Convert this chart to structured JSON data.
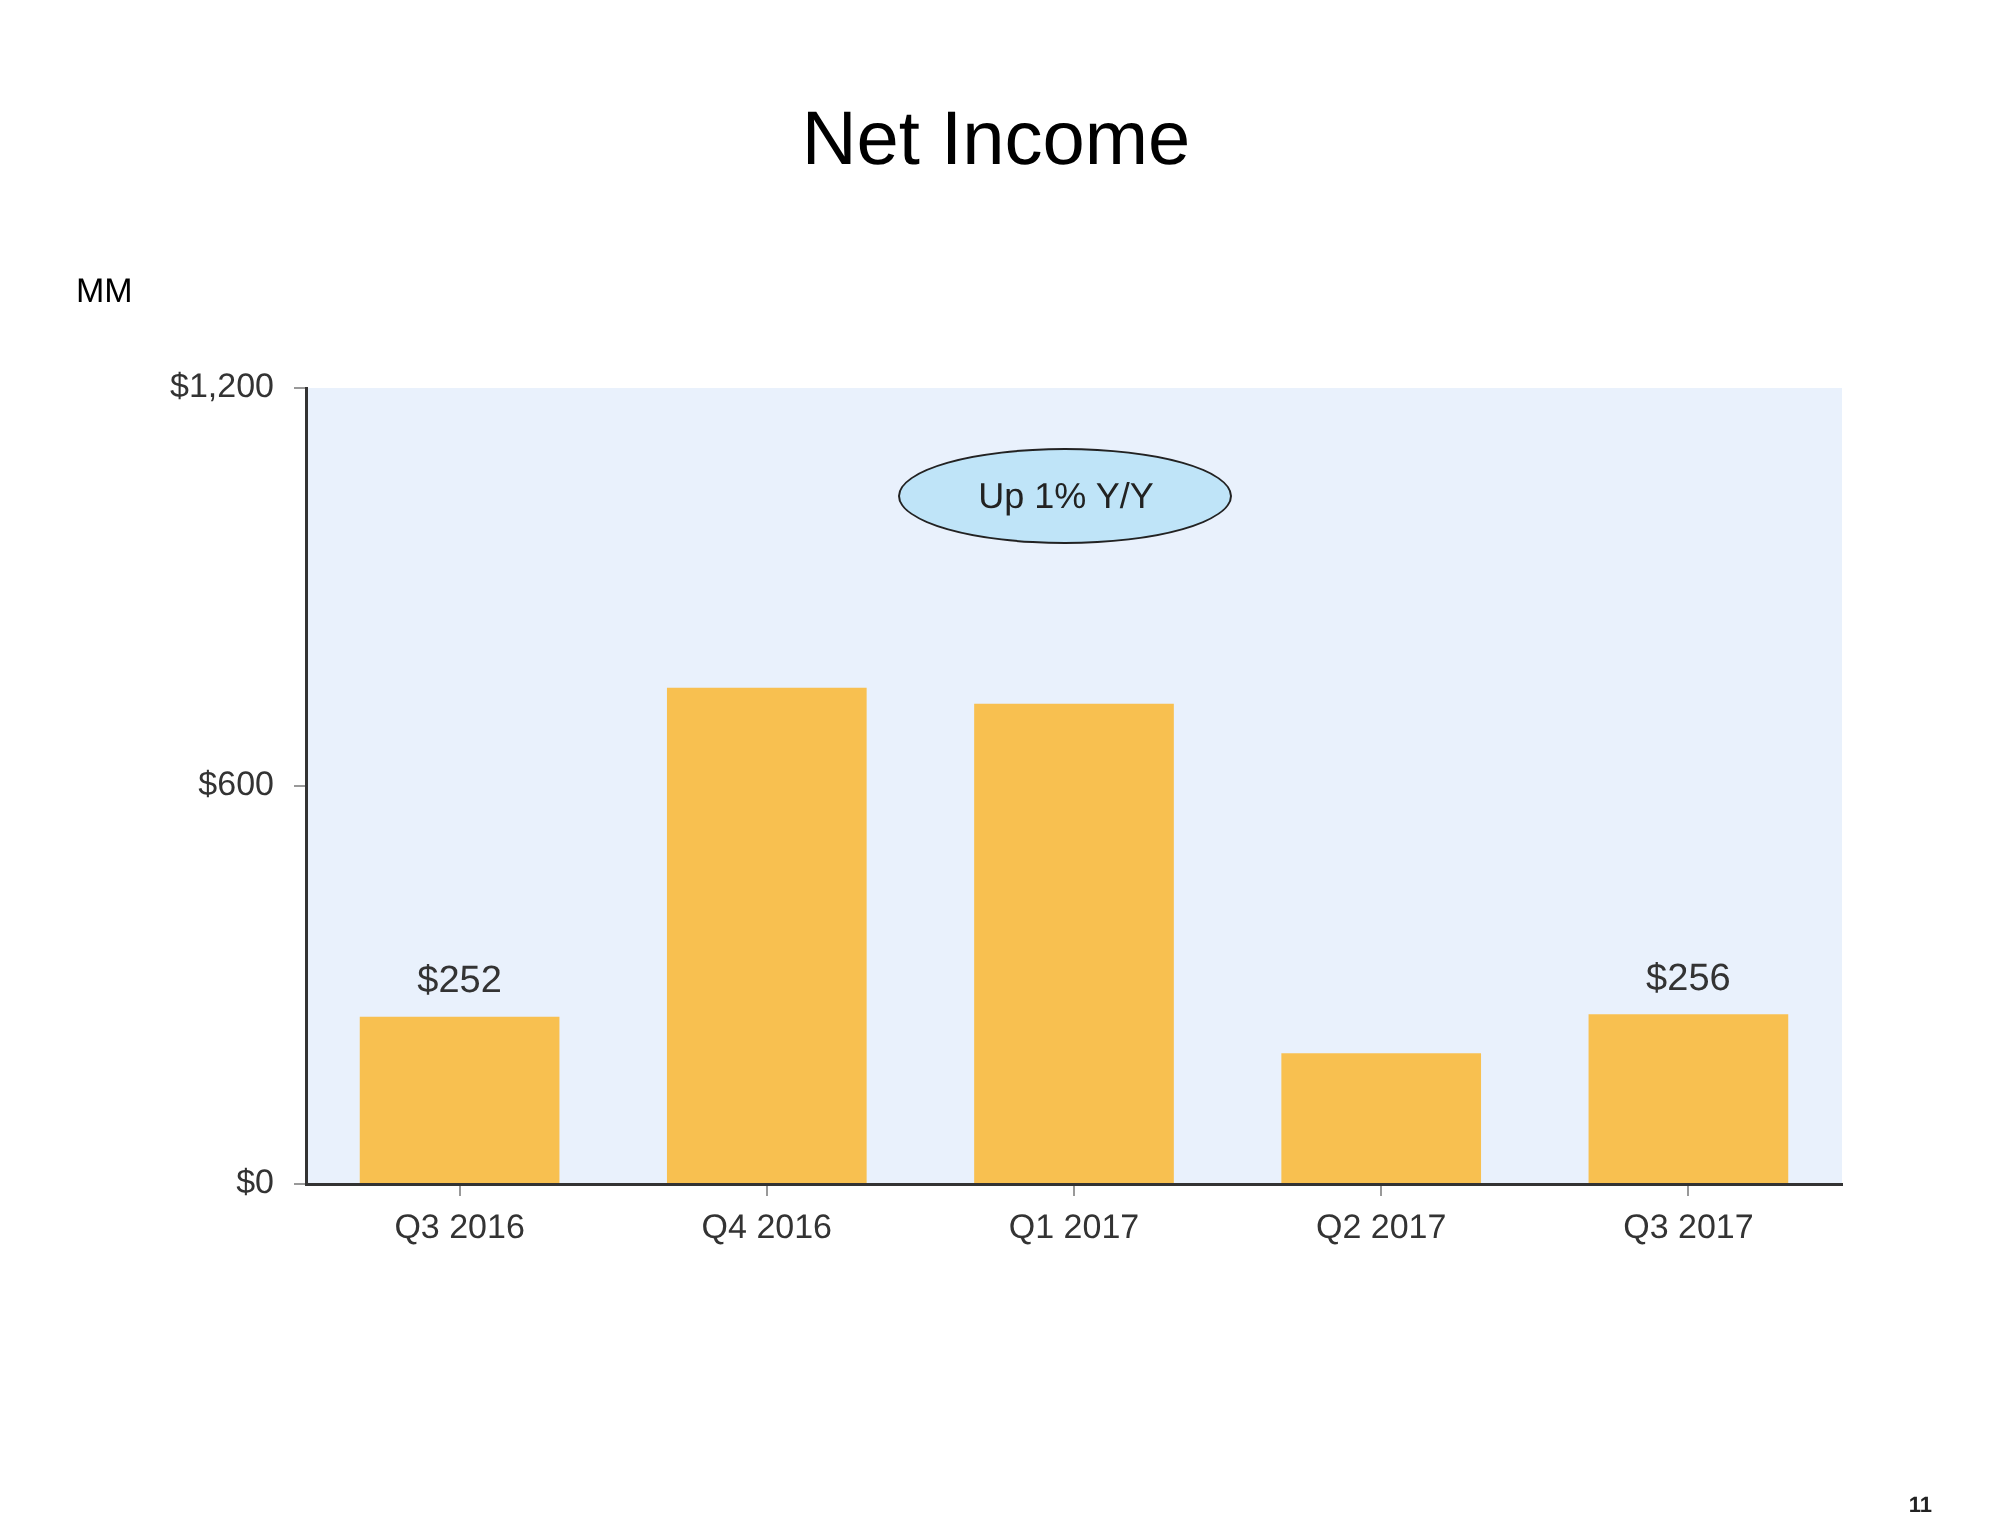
{
  "chart_data": {
    "type": "bar",
    "title": "Net Income",
    "ylabel": "MM",
    "categories": [
      "Q3 2016",
      "Q4 2016",
      "Q1 2017",
      "Q2 2017",
      "Q3 2017"
    ],
    "values": [
      252,
      748,
      724,
      197,
      256
    ],
    "color": "#f8c050",
    "value_labels": [
      "$252",
      null,
      null,
      null,
      "$256"
    ],
    "ylim": [
      0,
      1200
    ],
    "yticks": [
      {
        "value": 0,
        "label": "$0"
      },
      {
        "value": 600,
        "label": "$600"
      },
      {
        "value": 1200,
        "label": "$1,200"
      }
    ],
    "grid": false,
    "annotations": [
      "Up 1% Y/Y",
      "11"
    ]
  }
}
